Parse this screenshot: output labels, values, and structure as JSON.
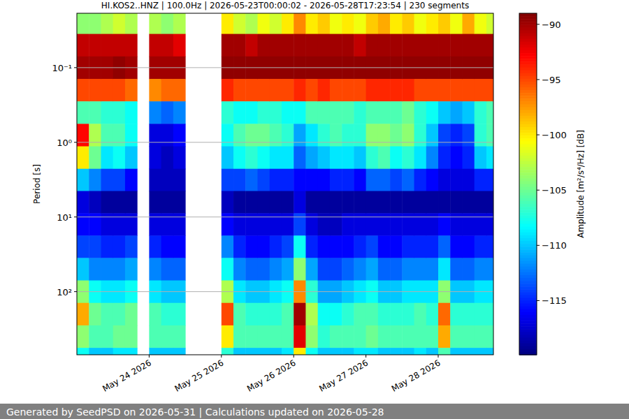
{
  "chart_data": {
    "type": "heatmap",
    "title": "HI.KOS2..HNZ | 100.0Hz | 2026-05-23T00:00:02 - 2026-05-28T17:23:54 | 230 segments",
    "y_label": "Period [s]",
    "colorbar_label": "Amplitude [m²/s⁴/Hz] [dB]",
    "footer": "Generated by SeedPSD on 2026-05-31 | Calculations updated on 2026-05-28",
    "log": "y",
    "grid": "y",
    "xlim": [
      "2026-05-23T00:00",
      "2026-05-28T18:20"
    ],
    "xticks": [
      {
        "value": "2026-05-24T00:00",
        "label": "May 24 2026"
      },
      {
        "value": "2026-05-25T00:00",
        "label": "May 25 2026"
      },
      {
        "value": "2026-05-26T00:00",
        "label": "May 26 2026"
      },
      {
        "value": "2026-05-27T00:00",
        "label": "May 27 2026"
      },
      {
        "value": "2026-05-28T00:00",
        "label": "May 28 2026"
      }
    ],
    "ylim": [
      0.0187,
      700
    ],
    "yticks": [
      {
        "value": 0.1,
        "label": "10⁻¹"
      },
      {
        "value": 1,
        "label": "10⁰"
      },
      {
        "value": 10,
        "label": "10¹"
      },
      {
        "value": 100,
        "label": "10²"
      }
    ],
    "zlim": [
      -119.9,
      -89
    ],
    "zticks": [
      {
        "value": -90,
        "label": "−90"
      },
      {
        "value": -95,
        "label": "−95"
      },
      {
        "value": -100,
        "label": "−100"
      },
      {
        "value": -105,
        "label": "−105"
      },
      {
        "value": -110,
        "label": "−110"
      },
      {
        "value": -115,
        "label": "−115"
      }
    ],
    "x": [
      "2026-05-23T00:00",
      "2026-05-23T04:00",
      "2026-05-23T08:00",
      "2026-05-23T12:00",
      "2026-05-23T16:00",
      "2026-05-23T20:00",
      "2026-05-24T00:00",
      "2026-05-24T04:00",
      "2026-05-24T08:00",
      "2026-05-24T12:00",
      "2026-05-24T16:00",
      "2026-05-24T20:00",
      "2026-05-25T00:00",
      "2026-05-25T04:00",
      "2026-05-25T08:00",
      "2026-05-25T12:00",
      "2026-05-25T16:00",
      "2026-05-25T20:00",
      "2026-05-26T00:00",
      "2026-05-26T04:00",
      "2026-05-26T08:00",
      "2026-05-26T12:00",
      "2026-05-26T16:00",
      "2026-05-26T20:00",
      "2026-05-27T00:00",
      "2026-05-27T04:00",
      "2026-05-27T08:00",
      "2026-05-27T12:00",
      "2026-05-27T16:00",
      "2026-05-27T20:00",
      "2026-05-28T00:00",
      "2026-05-28T04:00",
      "2026-05-28T08:00",
      "2026-05-28T12:00",
      "2026-05-28T16:00"
    ],
    "periods": [
      0.025,
      0.05,
      0.1,
      0.2,
      0.4,
      0.8,
      1.6,
      3.2,
      6.3,
      12.6,
      25,
      50,
      100,
      200,
      400,
      800
    ],
    "z": [
      [
        -104,
        -91,
        -90,
        -95,
        -106,
        -93,
        -100,
        -110,
        -117,
        -116,
        -114,
        -110,
        -104,
        -98,
        -104,
        -108
      ],
      [
        -104,
        -91,
        -90,
        -95,
        -106,
        -103,
        -105,
        -112,
        -118,
        -116,
        -114,
        -112,
        -108,
        -105,
        -106,
        -110
      ],
      [
        -103,
        -91,
        -90,
        -95,
        -107,
        -106,
        -109,
        -114,
        -119,
        -117,
        -115,
        -112,
        -109,
        -106,
        -106,
        -110
      ],
      [
        -102,
        -91,
        -89.5,
        -95,
        -107,
        -106,
        -108,
        -114,
        -119,
        -117,
        -115,
        -112,
        -109,
        -106,
        -105,
        -109
      ],
      [
        -103,
        -91,
        -90,
        -96,
        -108,
        -108,
        -110,
        -116,
        -119,
        -117,
        -114,
        -111,
        -108,
        -105,
        -105,
        -109
      ],
      [
        null,
        null,
        null,
        null,
        null,
        null,
        null,
        null,
        null,
        null,
        null,
        null,
        null,
        null,
        null,
        null
      ],
      [
        -103,
        -91,
        -90,
        -97,
        -112,
        -117,
        -117,
        -118,
        -119,
        -117,
        -115,
        -112,
        -109,
        -106,
        -106,
        -110
      ],
      [
        -104,
        -91,
        -90,
        -96,
        -113,
        -117,
        -118,
        -118,
        -119,
        -117,
        -116,
        -113,
        -110,
        -107,
        -106,
        -110
      ],
      [
        -103,
        -92,
        -90,
        -96,
        -112,
        -116,
        -117,
        -118,
        -119,
        -117,
        -116,
        -113,
        -110,
        -107,
        -106,
        -110
      ],
      [
        null,
        null,
        null,
        null,
        null,
        null,
        null,
        null,
        null,
        null,
        null,
        null,
        null,
        null,
        null,
        null
      ],
      [
        null,
        null,
        null,
        null,
        null,
        null,
        null,
        null,
        null,
        null,
        null,
        null,
        null,
        null,
        null,
        null
      ],
      [
        null,
        null,
        null,
        null,
        null,
        null,
        null,
        null,
        null,
        null,
        null,
        null,
        null,
        null,
        null,
        null
      ],
      [
        -100,
        -90,
        -89.5,
        -94,
        -107,
        -108,
        -110,
        -114,
        -118,
        -116,
        -112,
        -108,
        -103,
        -95,
        -100,
        -107
      ],
      [
        -102,
        -90,
        -89.5,
        -95,
        -108,
        -106,
        -108,
        -114,
        -119,
        -117,
        -115,
        -112,
        -109,
        -106,
        -106,
        -110
      ],
      [
        -103,
        -91,
        -89.5,
        -95,
        -108,
        -105,
        -107,
        -113,
        -119,
        -117,
        -116,
        -113,
        -110,
        -107,
        -106,
        -110
      ],
      [
        -101,
        -90,
        -89.5,
        -95,
        -107,
        -105,
        -108,
        -114,
        -119,
        -117,
        -116,
        -113,
        -110,
        -107,
        -106,
        -110
      ],
      [
        -102,
        -90,
        -89.5,
        -95,
        -107,
        -106,
        -109,
        -115,
        -119,
        -117,
        -115,
        -112,
        -109,
        -107,
        -106,
        -110
      ],
      [
        -100,
        -90,
        -89.5,
        -95,
        -108,
        -107,
        -109,
        -115,
        -119,
        -117,
        -114,
        -111,
        -108,
        -106,
        -106,
        -109
      ],
      [
        -97,
        -90,
        -89.5,
        -94,
        -108,
        -111,
        -113,
        -116,
        -117,
        -114,
        -108,
        -104,
        -97,
        -90,
        -92,
        -100
      ],
      [
        -100,
        -90,
        -89.5,
        -95,
        -106,
        -109,
        -111,
        -116,
        -119,
        -117,
        -115,
        -111,
        -107,
        -103,
        -104,
        -108
      ],
      [
        -99,
        -90,
        -89.5,
        -94,
        -106,
        -107,
        -110,
        -116,
        -119,
        -118,
        -116,
        -114,
        -111,
        -108,
        -107,
        -110
      ],
      [
        -101,
        -90,
        -89.5,
        -95,
        -106,
        -106,
        -109,
        -115,
        -119,
        -118,
        -116,
        -114,
        -111,
        -108,
        -106,
        -110
      ],
      [
        -100,
        -90,
        -89.5,
        -95,
        -106,
        -107,
        -109,
        -115,
        -119,
        -117,
        -116,
        -113,
        -110,
        -107,
        -106,
        -110
      ],
      [
        -101,
        -91,
        -89.5,
        -95,
        -107,
        -107,
        -110,
        -116,
        -119,
        -117,
        -115,
        -112,
        -109,
        -106,
        -106,
        -109
      ],
      [
        -99,
        -90,
        -89.5,
        -94,
        -106,
        -104,
        -107,
        -113,
        -119,
        -117,
        -114,
        -111,
        -108,
        -106,
        -105,
        -109
      ],
      [
        -98,
        -90,
        -89.5,
        -94,
        -106,
        -104,
        -106,
        -113,
        -119,
        -117,
        -116,
        -113,
        -110,
        -107,
        -106,
        -110
      ],
      [
        -100,
        -90,
        -89.5,
        -94,
        -106,
        -105,
        -108,
        -114,
        -119,
        -117,
        -116,
        -113,
        -110,
        -107,
        -106,
        -110
      ],
      [
        -99,
        -90,
        -89.5,
        -94,
        -105,
        -104,
        -107,
        -113,
        -119,
        -117,
        -115,
        -112,
        -109,
        -107,
        -106,
        -110
      ],
      [
        -101,
        -90,
        -89.5,
        -95,
        -107,
        -107,
        -109,
        -115,
        -119,
        -117,
        -115,
        -112,
        -109,
        -106,
        -106,
        -109
      ],
      [
        -100,
        -90,
        -89.5,
        -95,
        -108,
        -110,
        -112,
        -116,
        -119,
        -117,
        -115,
        -112,
        -109,
        -107,
        -106,
        -110
      ],
      [
        -99,
        -90,
        -89.5,
        -95,
        -110,
        -114,
        -115,
        -117,
        -119,
        -116,
        -113,
        -109,
        -104,
        -96,
        -98,
        -106
      ],
      [
        -101,
        -90,
        -89.5,
        -95,
        -111,
        -115,
        -116,
        -117,
        -119,
        -117,
        -116,
        -113,
        -110,
        -107,
        -106,
        -110
      ],
      [
        -98,
        -90,
        -89.5,
        -95,
        -110,
        -114,
        -115,
        -117,
        -119,
        -117,
        -116,
        -113,
        -110,
        -107,
        -106,
        -110
      ],
      [
        -101,
        -90,
        -89.5,
        -95,
        -107,
        -107,
        -110,
        -115,
        -119,
        -117,
        -115,
        -112,
        -109,
        -107,
        -106,
        -110
      ],
      [
        -102,
        -90,
        -89.5,
        -95,
        -106,
        -106,
        -109,
        -115,
        -119,
        -117,
        -115,
        -112,
        -109,
        -107,
        -106,
        -110
      ]
    ]
  }
}
